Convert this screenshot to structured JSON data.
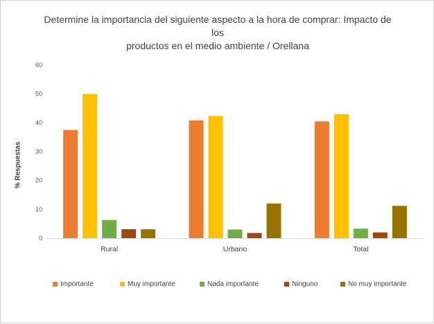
{
  "chart_data": {
    "type": "bar",
    "title": "Determine la importancia del siguiente aspecto a la hora de comprar: Impacto de los productos en el medio ambiente / Orellana",
    "title_lines": [
      "Determine la importancia del siguiente aspecto a la hora de comprar: Impacto de los",
      "productos en el medio ambiente / Orellana"
    ],
    "ylabel": "% Respuestas",
    "xlabel": "",
    "ylim": [
      0,
      60
    ],
    "yticks": [
      "0",
      "10",
      "20",
      "30",
      "40",
      "50",
      "60"
    ],
    "categories": [
      "Rural",
      "Urbano",
      "Total"
    ],
    "series": [
      {
        "name": "Importante",
        "color": "#ED7D31",
        "values": [
          37.5,
          40.8,
          40.5
        ]
      },
      {
        "name": "Muy importante",
        "color": "#FFC000",
        "values": [
          50.0,
          42.4,
          43.0
        ]
      },
      {
        "name": "Nada importante",
        "color": "#70AD47",
        "values": [
          6.3,
          3.0,
          3.3
        ]
      },
      {
        "name": "Ninguno",
        "color": "#9E480E",
        "values": [
          3.1,
          1.8,
          2.0
        ]
      },
      {
        "name": "No muy importante",
        "color": "#997300",
        "values": [
          3.1,
          12.0,
          11.2
        ]
      }
    ],
    "grid": false,
    "legend_position": "bottom"
  }
}
